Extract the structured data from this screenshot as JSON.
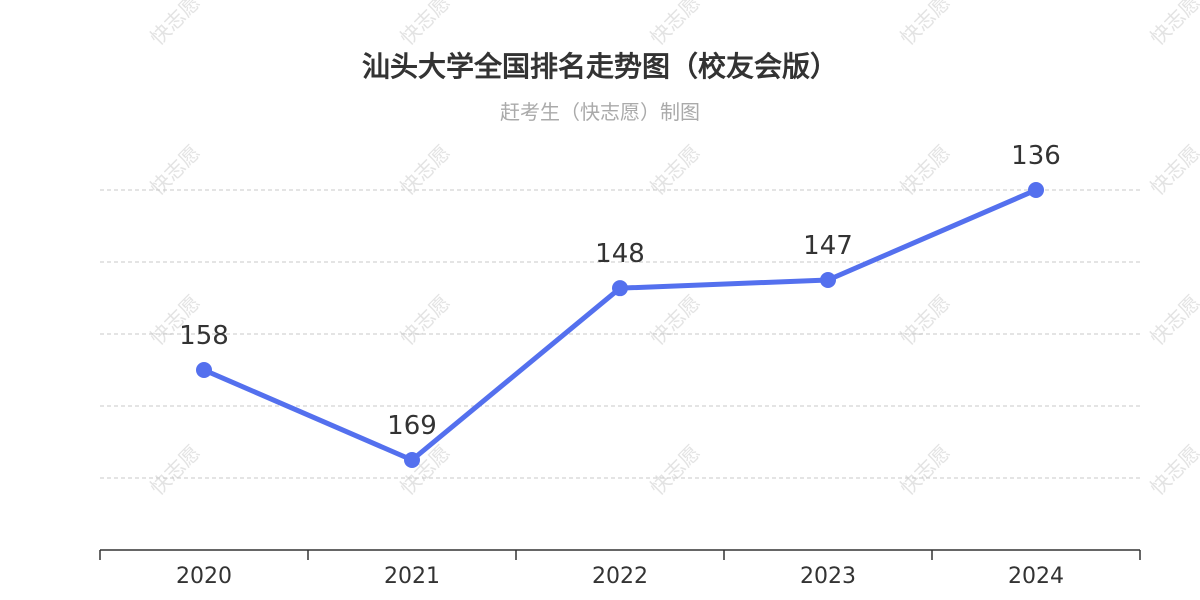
{
  "chart_data": {
    "type": "line",
    "title": "汕头大学全国排名走势图（校友会版）",
    "subtitle": "赶考生（快志愿）制图",
    "categories": [
      "2020",
      "2021",
      "2022",
      "2023",
      "2024"
    ],
    "series": [
      {
        "values": [
          158,
          169,
          148,
          147,
          136
        ]
      }
    ],
    "y_inverted": true,
    "ylim": [
      180,
      136
    ],
    "grid": true,
    "line_color": "#5470ee",
    "watermark_text": "快志愿"
  }
}
